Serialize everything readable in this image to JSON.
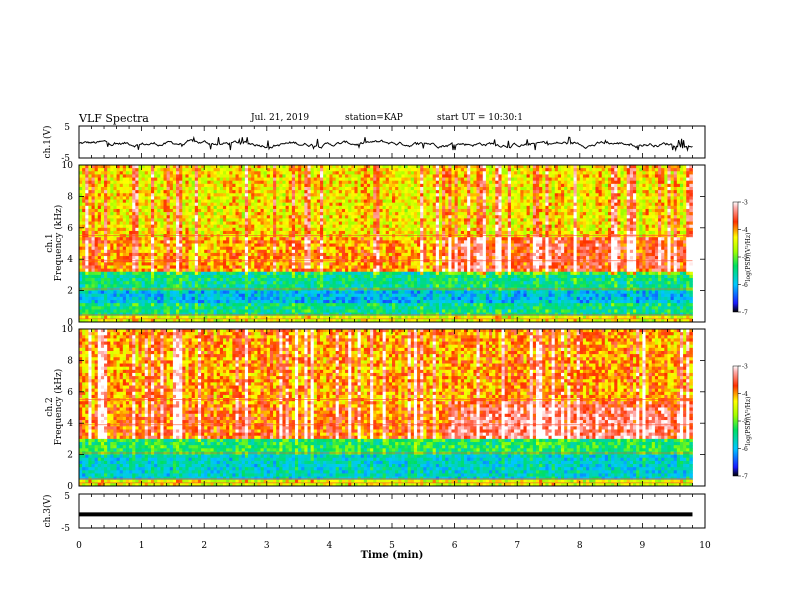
{
  "header": {
    "title": "VLF Spectra",
    "date": "Jul. 21, 2019",
    "station": "station=KAP",
    "start": "start UT = 10:30:1"
  },
  "chart_data": [
    {
      "type": "line",
      "ylabel": "ch.1(V)",
      "ylim": [
        -5,
        5
      ],
      "yticks": [
        "5",
        "-5"
      ],
      "xlim": [
        0,
        10
      ],
      "description_values": "voltage waveform fluctuating roughly between -2 and 1 V",
      "approx_range": [
        -2.5,
        1.5
      ],
      "grid": false
    },
    {
      "type": "heatmap",
      "ylabel": "ch.1",
      "ylabel2": "Frequency (kHz)",
      "ylim": [
        0,
        10
      ],
      "yticks": [
        "0",
        "2",
        "4",
        "6",
        "8",
        "10"
      ],
      "xlim": [
        0,
        10
      ],
      "data_end_min": 9.8,
      "colorbar": {
        "label": "log(PSD)(V²/Hz)",
        "range": [
          -7,
          -3
        ],
        "ticks": [
          "-3",
          "-4",
          "-5",
          "-6",
          "-7"
        ]
      },
      "bands_kHz": [
        {
          "from": 0,
          "to": 0.5,
          "level": -4.5
        },
        {
          "from": 0.5,
          "to": 1.2,
          "level": -5.5
        },
        {
          "from": 1.2,
          "to": 2.0,
          "level": -6.0
        },
        {
          "from": 2.0,
          "to": 3.2,
          "level": -5.5
        },
        {
          "from": 3.2,
          "to": 5.5,
          "level": -4.0
        },
        {
          "from": 5.5,
          "to": 10,
          "level": -4.3
        }
      ]
    },
    {
      "type": "heatmap",
      "ylabel": "ch.2",
      "ylabel2": "Frequency (kHz)",
      "ylim": [
        0,
        10
      ],
      "yticks": [
        "0",
        "2",
        "4",
        "6",
        "8",
        "10"
      ],
      "xlim": [
        0,
        10
      ],
      "data_end_min": 9.8,
      "colorbar": {
        "label": "log(PSD)(V²/Hz)",
        "range": [
          -7,
          -3
        ],
        "ticks": [
          "-3",
          "-4",
          "-5",
          "-6",
          "-7"
        ]
      },
      "bands_kHz": [
        {
          "from": 0,
          "to": 0.5,
          "level": -4.5
        },
        {
          "from": 0.5,
          "to": 1.2,
          "level": -5.8
        },
        {
          "from": 1.2,
          "to": 2.0,
          "level": -5.8
        },
        {
          "from": 2.0,
          "to": 3.0,
          "level": -5.3
        },
        {
          "from": 3.0,
          "to": 5.0,
          "level": -3.8
        },
        {
          "from": 5.0,
          "to": 10,
          "level": -4.0
        }
      ]
    },
    {
      "type": "line",
      "ylabel": "ch.3(V)",
      "ylim": [
        -5,
        5
      ],
      "yticks": [
        "5",
        "-5"
      ],
      "xlim": [
        0,
        10
      ],
      "constant_value": -1,
      "xlabel": "Time (min)",
      "xticks": [
        "0",
        "1",
        "2",
        "3",
        "4",
        "5",
        "6",
        "7",
        "8",
        "9",
        "10"
      ]
    }
  ]
}
